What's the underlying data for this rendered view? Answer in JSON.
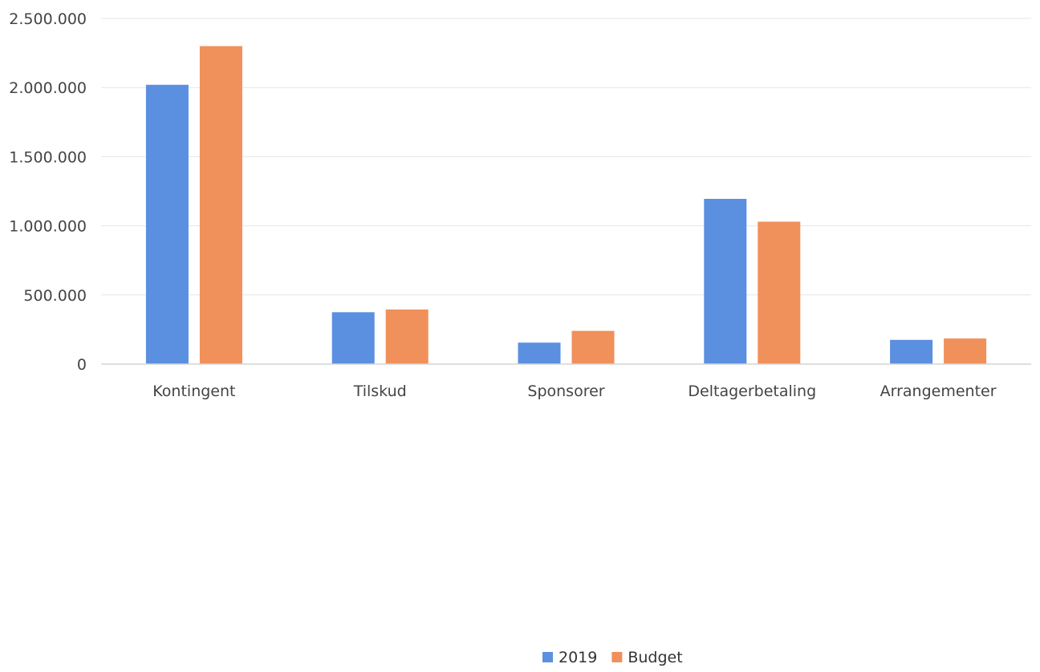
{
  "chart_data": {
    "type": "bar",
    "categories": [
      "Kontingent",
      "Tilskud",
      "Sponsorer",
      "Deltagerbetaling",
      "Arrangementer"
    ],
    "series": [
      {
        "name": "2019",
        "color": "#5b8fdf",
        "values": [
          2020000,
          375000,
          155000,
          1195000,
          175000
        ]
      },
      {
        "name": "Budget",
        "color": "#f0905a",
        "values": [
          2300000,
          395000,
          240000,
          1030000,
          185000
        ]
      }
    ],
    "y_ticks": [
      {
        "value": 0,
        "label": "0"
      },
      {
        "value": 500000,
        "label": "500.000"
      },
      {
        "value": 1000000,
        "label": "1.000.000"
      },
      {
        "value": 1500000,
        "label": "1.500.000"
      },
      {
        "value": 2000000,
        "label": "2.000.000"
      },
      {
        "value": 2500000,
        "label": "2.500.000"
      }
    ],
    "ylim": [
      0,
      2500000
    ],
    "grid": true,
    "legend_position": "bottom-center",
    "title": "",
    "xlabel": "",
    "ylabel": ""
  }
}
